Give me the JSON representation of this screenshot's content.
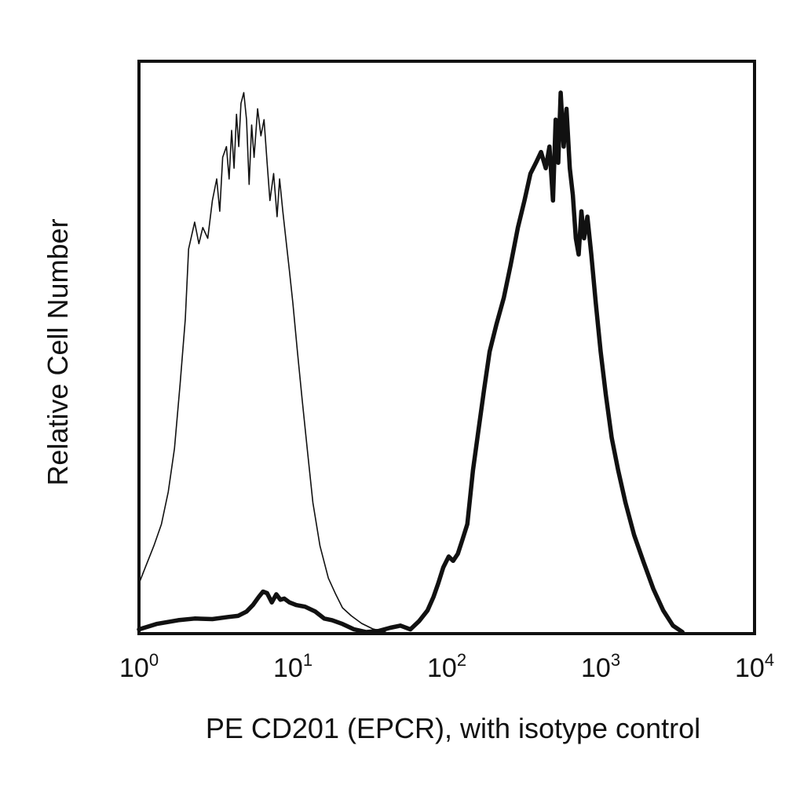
{
  "chart_data": {
    "type": "line",
    "title": "",
    "xlabel": "PE CD201 (EPCR), with isotype control",
    "ylabel": "Relative Cell Number",
    "x_scale": "log",
    "xlim": [
      1,
      10000
    ],
    "ylim": [
      0,
      1
    ],
    "x_ticks": [
      {
        "value": 1,
        "base": "10",
        "exp": "0"
      },
      {
        "value": 10,
        "base": "10",
        "exp": "1"
      },
      {
        "value": 100,
        "base": "10",
        "exp": "2"
      },
      {
        "value": 1000,
        "base": "10",
        "exp": "3"
      },
      {
        "value": 10000,
        "base": "10",
        "exp": "4"
      }
    ],
    "y_ticks": [],
    "grid": false,
    "legend": "none",
    "series": [
      {
        "style": "thin",
        "color": "#111111",
        "x": [
          1.0,
          1.1,
          1.25,
          1.4,
          1.55,
          1.7,
          1.85,
          2.0,
          2.1,
          2.3,
          2.45,
          2.6,
          2.8,
          3.0,
          3.2,
          3.35,
          3.5,
          3.7,
          3.85,
          4.0,
          4.15,
          4.3,
          4.45,
          4.6,
          4.8,
          5.0,
          5.2,
          5.4,
          5.6,
          5.9,
          6.2,
          6.5,
          6.8,
          7.1,
          7.5,
          7.9,
          8.2,
          8.6,
          9.0,
          9.5,
          10.0,
          10.7,
          11.5,
          12.5,
          13.5,
          15.0,
          17.0,
          19.0,
          21.0,
          24.0,
          28.0,
          33.0,
          40.0
        ],
        "y": [
          0.09,
          0.12,
          0.16,
          0.2,
          0.26,
          0.34,
          0.46,
          0.58,
          0.71,
          0.76,
          0.72,
          0.75,
          0.73,
          0.8,
          0.84,
          0.78,
          0.88,
          0.9,
          0.84,
          0.93,
          0.86,
          0.96,
          0.9,
          0.98,
          1.0,
          0.95,
          0.83,
          0.94,
          0.88,
          0.97,
          0.92,
          0.95,
          0.87,
          0.8,
          0.85,
          0.77,
          0.84,
          0.78,
          0.73,
          0.67,
          0.61,
          0.52,
          0.43,
          0.33,
          0.24,
          0.16,
          0.1,
          0.07,
          0.045,
          0.03,
          0.016,
          0.006,
          0.0
        ]
      },
      {
        "style": "thick",
        "color": "#111111",
        "x": [
          1.0,
          1.3,
          1.8,
          2.3,
          3.0,
          3.8,
          4.4,
          5.0,
          5.5,
          6.0,
          6.4,
          6.8,
          7.3,
          7.8,
          8.3,
          8.8,
          9.5,
          10.5,
          12.0,
          14.0,
          16.0,
          18.0,
          21.0,
          25.0,
          30.0,
          36.0,
          43.0,
          50.0,
          58.0,
          66.0,
          75.0,
          82.0,
          88.0,
          95.0,
          103.0,
          110.0,
          118.0,
          126.0,
          136.0,
          148.0,
          160.0,
          175.0,
          190.0,
          210.0,
          235.0,
          260.0,
          290.0,
          320.0,
          350.0,
          380.0,
          410.0,
          440.0,
          465.0,
          490.0,
          510.0,
          530.0,
          550.0,
          575.0,
          600.0,
          630.0,
          660.0,
          690.0,
          720.0,
          750.0,
          780.0,
          820.0,
          870.0,
          930.0,
          1000.0,
          1080.0,
          1180.0,
          1300.0,
          1450.0,
          1650.0,
          1900.0,
          2200.0,
          2550.0,
          2950.0,
          3400.0
        ],
        "y": [
          0.005,
          0.015,
          0.022,
          0.025,
          0.024,
          0.028,
          0.03,
          0.038,
          0.05,
          0.065,
          0.075,
          0.072,
          0.055,
          0.07,
          0.06,
          0.062,
          0.055,
          0.05,
          0.047,
          0.038,
          0.025,
          0.022,
          0.015,
          0.005,
          0.0,
          0.002,
          0.008,
          0.012,
          0.005,
          0.02,
          0.04,
          0.065,
          0.09,
          0.12,
          0.14,
          0.132,
          0.145,
          0.17,
          0.2,
          0.3,
          0.37,
          0.45,
          0.52,
          0.57,
          0.62,
          0.68,
          0.75,
          0.8,
          0.85,
          0.87,
          0.89,
          0.86,
          0.9,
          0.8,
          0.95,
          0.87,
          1.0,
          0.9,
          0.97,
          0.86,
          0.81,
          0.73,
          0.7,
          0.78,
          0.73,
          0.77,
          0.7,
          0.61,
          0.52,
          0.44,
          0.36,
          0.3,
          0.24,
          0.18,
          0.13,
          0.08,
          0.04,
          0.012,
          0.0
        ]
      }
    ]
  }
}
